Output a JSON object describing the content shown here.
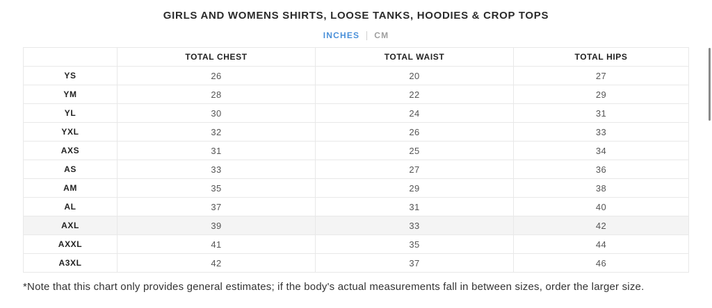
{
  "header": {
    "title": "GIRLS AND WOMENS SHIRTS, LOOSE TANKS, HOODIES & CROP TOPS"
  },
  "unit_tabs": {
    "inches_label": "INCHES",
    "cm_label": "CM",
    "active": "INCHES"
  },
  "table": {
    "columns": {
      "size": "",
      "chest": "TOTAL CHEST",
      "waist": "TOTAL WAIST",
      "hips": "TOTAL HIPS"
    },
    "rows": [
      {
        "size": "YS",
        "chest": "26",
        "waist": "20",
        "hips": "27"
      },
      {
        "size": "YM",
        "chest": "28",
        "waist": "22",
        "hips": "29"
      },
      {
        "size": "YL",
        "chest": "30",
        "waist": "24",
        "hips": "31"
      },
      {
        "size": "YXL",
        "chest": "32",
        "waist": "26",
        "hips": "33"
      },
      {
        "size": "AXS",
        "chest": "31",
        "waist": "25",
        "hips": "34"
      },
      {
        "size": "AS",
        "chest": "33",
        "waist": "27",
        "hips": "36"
      },
      {
        "size": "AM",
        "chest": "35",
        "waist": "29",
        "hips": "38"
      },
      {
        "size": "AL",
        "chest": "37",
        "waist": "31",
        "hips": "40"
      },
      {
        "size": "AXL",
        "chest": "39",
        "waist": "33",
        "hips": "42"
      },
      {
        "size": "AXXL",
        "chest": "41",
        "waist": "35",
        "hips": "44"
      },
      {
        "size": "A3XL",
        "chest": "42",
        "waist": "37",
        "hips": "46"
      }
    ],
    "highlighted_row": "AXL"
  },
  "footnote": "*Note that this chart only provides general estimates; if the body's actual measurements fall in between sizes, order the larger size.",
  "colors": {
    "accent_blue": "#4a90d9",
    "inactive_tab_gray": "#9e9e9e",
    "table_border": "#e8e8e8",
    "highlight_row_bg": "#f4f4f4",
    "title_text": "#2b2b2b",
    "value_text": "#555555"
  }
}
